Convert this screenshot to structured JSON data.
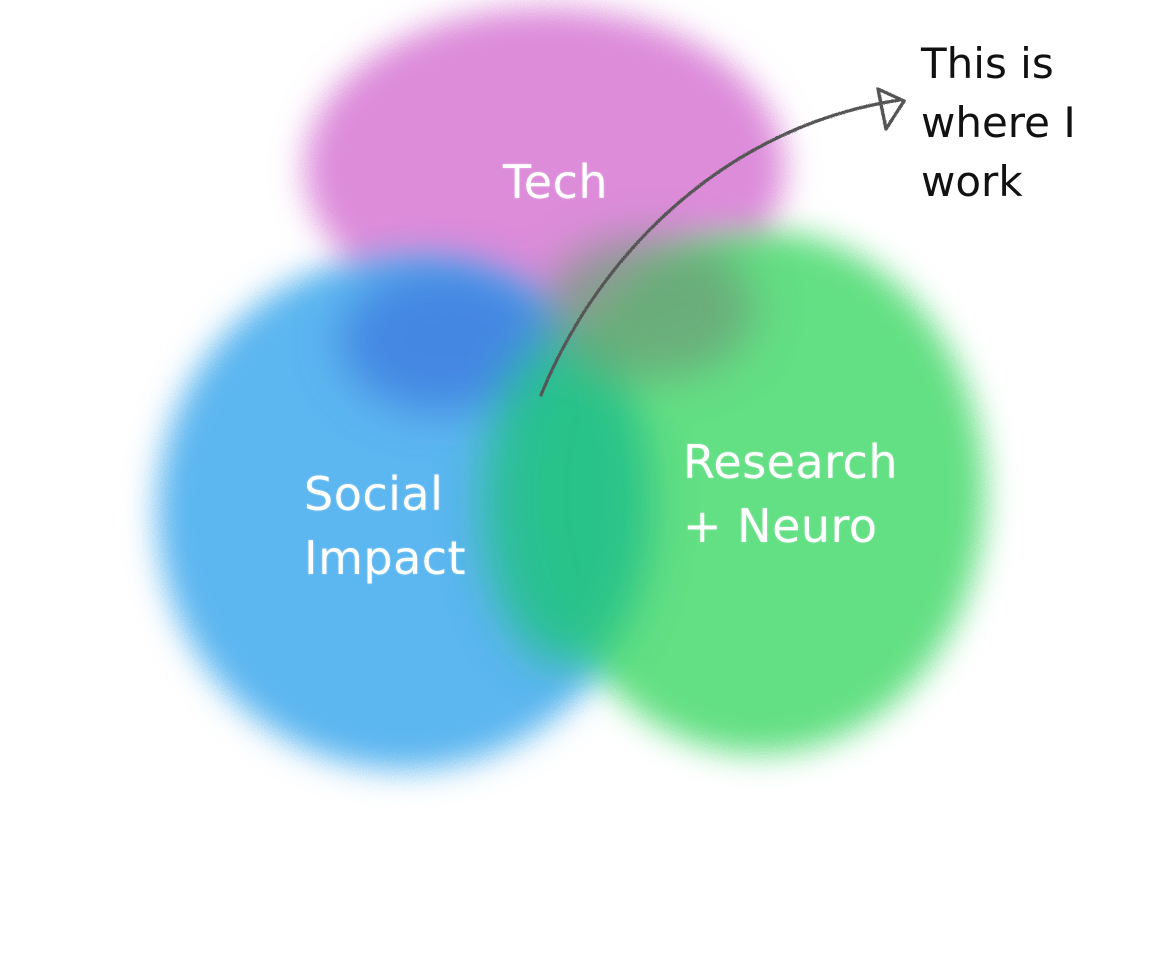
{
  "sets": [
    {
      "id": "tech",
      "lines": [
        "Tech"
      ],
      "color": "#d97fd6"
    },
    {
      "id": "social",
      "lines": [
        "Social",
        "Impact"
      ],
      "color": "#4fb0ef"
    },
    {
      "id": "research",
      "lines": [
        "Research",
        "+ Neuro"
      ],
      "color": "#57dc7a"
    }
  ],
  "overlap_colors": {
    "tech_social": "#3e7fe0",
    "social_research": "#22c08a",
    "tech_research": "#6c9e78"
  },
  "annotation": {
    "lines": [
      "This is",
      "where I",
      "work"
    ],
    "arrow_color": "#555555",
    "text_color": "#111111"
  }
}
